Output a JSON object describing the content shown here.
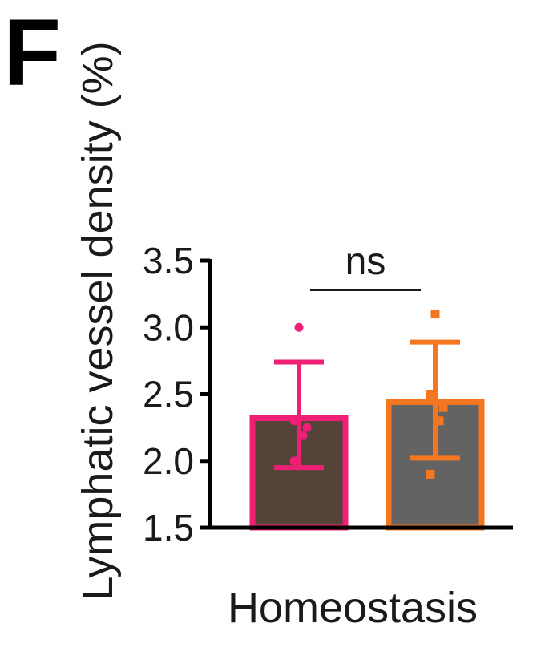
{
  "panel_label": "F",
  "chart_data": {
    "type": "bar",
    "title": "",
    "xlabel": "Homeostasis",
    "ylabel": "Lymphatic vessel density (%)",
    "ylim": [
      1.5,
      3.5
    ],
    "yticks": [
      "1.5",
      "2.0",
      "2.5",
      "3.0",
      "3.5"
    ],
    "grid": false,
    "legend": "none",
    "bars": [
      {
        "value": 2.32,
        "error_upper": 2.74,
        "error_lower": 1.95,
        "points": [
          3.0,
          2.3,
          2.25,
          2.19,
          2.0
        ],
        "fill": "#55433a",
        "edge": "#ee1f74"
      },
      {
        "value": 2.44,
        "error_upper": 2.89,
        "error_lower": 2.02,
        "points": [
          3.1,
          2.5,
          2.4,
          2.3,
          1.9
        ],
        "fill": "#636363",
        "edge": "#f47621"
      }
    ],
    "annotations": [
      {
        "text": "ns",
        "between": [
          0,
          1
        ]
      }
    ]
  }
}
